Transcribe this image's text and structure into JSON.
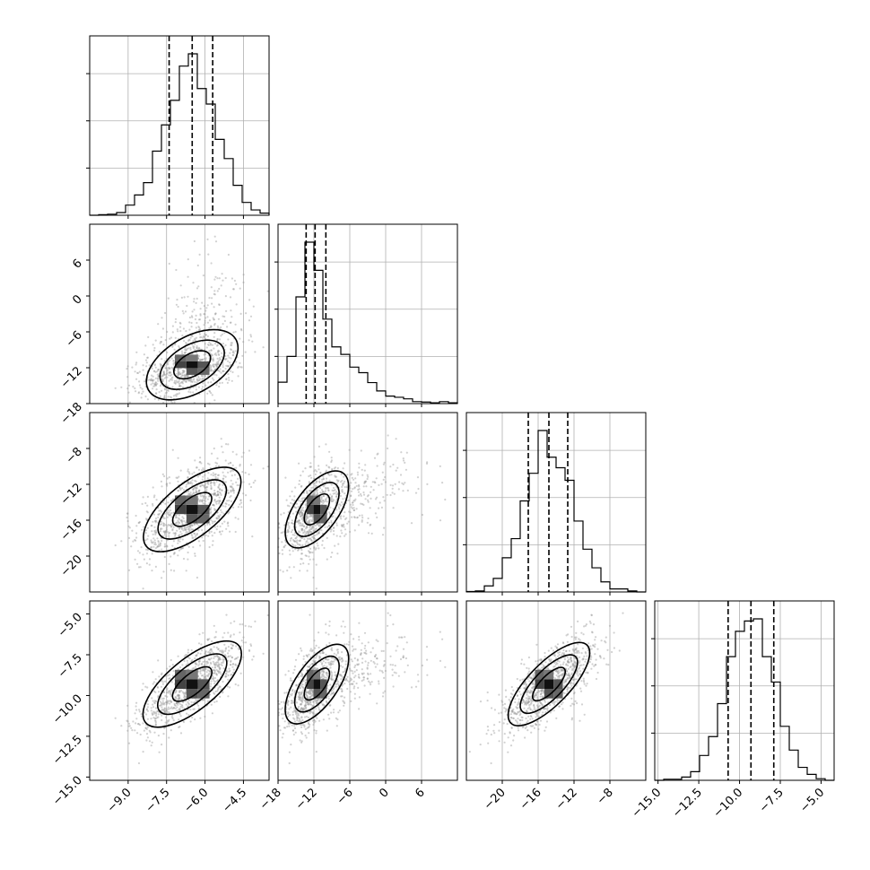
{
  "chart_data": {
    "type": "corner",
    "parameters": [
      {
        "range": [
          -10.5,
          -3.5
        ],
        "ticks": [
          -9.0,
          -7.5,
          -6.0,
          -4.5
        ],
        "tick_labels": [
          "−9.0",
          "−7.5",
          "−6.0",
          "−4.5"
        ],
        "mean": -6.5,
        "sd": 1.0,
        "quantiles": [
          -7.4,
          -6.5,
          -5.7
        ]
      },
      {
        "range": [
          -18,
          12
        ],
        "ticks": [
          -18,
          -12,
          -6,
          0,
          6
        ],
        "tick_labels": [
          "−18",
          "−12",
          "−6",
          "0",
          "6"
        ],
        "mean": -11.5,
        "sd": 2.5,
        "quantiles": [
          -13.3,
          -11.8,
          -10.0
        ]
      },
      {
        "range": [
          -24,
          -4
        ],
        "ticks": [
          -20,
          -16,
          -12,
          -8
        ],
        "tick_labels": [
          "−20",
          "−16",
          "−12",
          "−8"
        ],
        "mean": -14.8,
        "sd": 2.3,
        "quantiles": [
          -17.1,
          -14.8,
          -12.7
        ]
      },
      {
        "range": [
          -15.2,
          -4.2
        ],
        "ticks": [
          -15.0,
          -12.5,
          -10.0,
          -7.5,
          -5.0
        ],
        "tick_labels": [
          "−15.0",
          "−12.5",
          "−10.0",
          "−7.5",
          "−5.0"
        ],
        "mean": -9.3,
        "sd": 1.3,
        "quantiles": [
          -10.7,
          -9.3,
          -7.9
        ]
      }
    ],
    "y_axis_ticks": {
      "1": {
        "ticks": [
          6,
          0,
          -6,
          -12,
          -18
        ],
        "tick_labels": [
          "6",
          "0",
          "−6",
          "−12",
          "−18"
        ]
      },
      "2": {
        "ticks": [
          -8,
          -12,
          -16,
          -20
        ],
        "tick_labels": [
          "−8",
          "−12",
          "−16",
          "−20"
        ]
      },
      "3": {
        "ticks": [
          -5.0,
          -7.5,
          -10.0,
          -12.5,
          -15.0
        ],
        "tick_labels": [
          "−5.0",
          "−7.5",
          "−10.0",
          "−12.5",
          "−15.0"
        ]
      }
    },
    "correlations": {
      "1,0": 0.45,
      "2,0": 0.6,
      "2,1": 0.55,
      "3,0": 0.65,
      "3,1": 0.6,
      "3,2": 0.7
    },
    "histogram_bins": 20,
    "contour_levels": 3,
    "grid": true
  }
}
